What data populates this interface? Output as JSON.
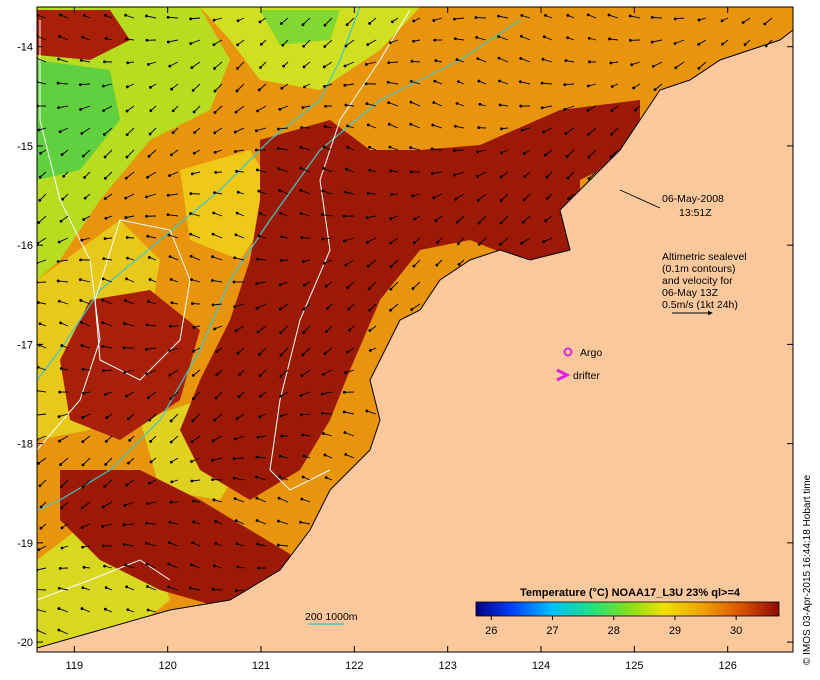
{
  "map": {
    "x_ticks": [
      "119",
      "120",
      "121",
      "122",
      "123",
      "124",
      "125",
      "126"
    ],
    "y_ticks": [
      "-14",
      "-15",
      "-16",
      "-17",
      "-18",
      "-19",
      "-20"
    ],
    "lon_range": [
      118.6,
      126.7
    ],
    "lat_range": [
      -20.1,
      -13.6
    ]
  },
  "annotations": {
    "timestamp_line1": "06-May-2008",
    "timestamp_line2": "13:51Z",
    "sealevel_lines": [
      "Altimetric sealevel",
      "(0.1m contours)",
      "and velocity for",
      "06-May 13Z",
      "0.5m/s (1kt 24h)"
    ],
    "argo_label": "Argo",
    "drifter_label": "drifter",
    "depth_legend": "200  1000m"
  },
  "colorbar": {
    "title": "Temperature (°C) NOAA17_L3U 23% ql>=4",
    "tick_labels": [
      "26",
      "27",
      "28",
      "29",
      "30"
    ]
  },
  "credit": "© IMOS 03-Apr-2015 16:44:18 Hobart time",
  "colors": {
    "land": "#fcc89c",
    "warmest": "#9c1a05",
    "warm": "#e07808",
    "mid": "#f0c010",
    "cool": "#c8e020",
    "coolest": "#40d040",
    "depth_contour": "#40c8c8",
    "sealevel_contour": "#ffffff",
    "argo": "#e020e0"
  }
}
